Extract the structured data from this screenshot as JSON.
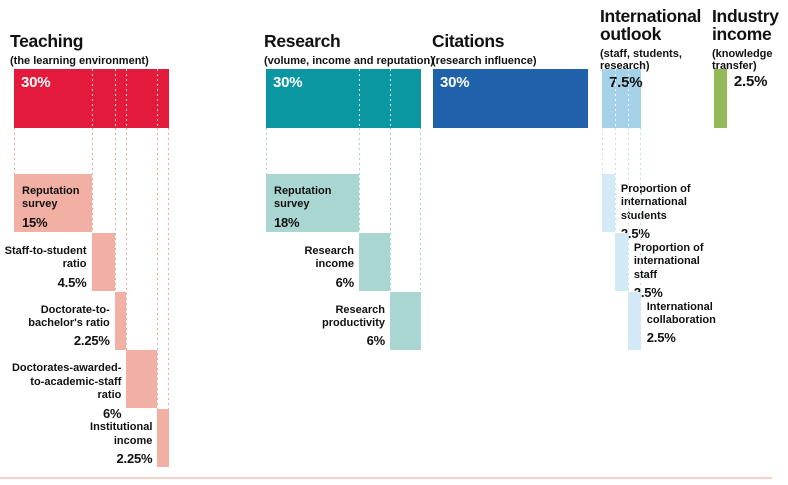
{
  "page": {
    "background": "#ffffff",
    "bottom_edge_color": "#f6cfc9"
  },
  "chart_data": {
    "type": "bar",
    "subtype": "weighted-methodology-breakdown",
    "unit": "%",
    "total": 100,
    "legend": "none",
    "grid": "dotted-connectors",
    "pillars": [
      {
        "title": "Teaching",
        "subtitle": "(the learning environment)",
        "weight": 30,
        "weight_label": "30%",
        "bar_color": "#e41a3c",
        "sub_bar_color": "#f2afa4",
        "dotted_line_color": "#eda8a0",
        "weight_label_color": "#ffffff",
        "components": [
          {
            "label": "Reputation\nsurvey",
            "weight": 15,
            "weight_label": "15%",
            "label_side": "inside"
          },
          {
            "label": "Staff-to-student\nratio",
            "weight": 4.5,
            "weight_label": "4.5%",
            "label_side": "left"
          },
          {
            "label": "Doctorate-to-\nbachelor's ratio",
            "weight": 2.25,
            "weight_label": "2.25%",
            "label_side": "left"
          },
          {
            "label": "Doctorates-awarded-\nto-academic-staff\nratio",
            "weight": 6,
            "weight_label": "6%",
            "label_side": "left"
          },
          {
            "label": "Institutional\nincome",
            "weight": 2.25,
            "weight_label": "2.25%",
            "label_side": "left"
          }
        ]
      },
      {
        "title": "Research",
        "subtitle": "(volume, income and reputation)",
        "weight": 30,
        "weight_label": "30%",
        "bar_color": "#0b97a1",
        "sub_bar_color": "#aad6d1",
        "dotted_line_color": "#a6d4d0",
        "weight_label_color": "#ffffff",
        "components": [
          {
            "label": "Reputation\nsurvey",
            "weight": 18,
            "weight_label": "18%",
            "label_side": "inside"
          },
          {
            "label": "Research\nincome",
            "weight": 6,
            "weight_label": "6%",
            "label_side": "left"
          },
          {
            "label": "Research\nproductivity",
            "weight": 6,
            "weight_label": "6%",
            "label_side": "left"
          }
        ]
      },
      {
        "title": "Citations",
        "subtitle": "(research influence)",
        "weight": 30,
        "weight_label": "30%",
        "bar_color": "#1f61aa",
        "sub_bar_color": "#1f61aa",
        "dotted_line_color": "#1f61aa",
        "weight_label_color": "#ffffff",
        "components": []
      },
      {
        "title": "International outlook",
        "subtitle": "(staff, students, research)",
        "weight": 7.5,
        "weight_label": "7.5%",
        "bar_color": "#a5d2e9",
        "sub_bar_color": "#d3e9f6",
        "dotted_line_color": "#c6e1f1",
        "weight_label_color": "#111111",
        "components": [
          {
            "label": "Proportion of\ninternational\nstudents",
            "weight": 2.5,
            "weight_label": "2.5%",
            "label_side": "right"
          },
          {
            "label": "Proportion of\ninternational\nstaff",
            "weight": 2.5,
            "weight_label": "2.5%",
            "label_side": "right"
          },
          {
            "label": "International\ncollaboration",
            "weight": 2.5,
            "weight_label": "2.5%",
            "label_side": "right"
          }
        ]
      },
      {
        "title": "Industry income",
        "subtitle": "(knowledge transfer)",
        "weight": 2.5,
        "weight_label": "2.5%",
        "bar_color": "#93b958",
        "sub_bar_color": "#93b958",
        "dotted_line_color": "#93b958",
        "weight_label_color": "#111111",
        "weight_label_position": "outside-right",
        "components": []
      }
    ]
  }
}
